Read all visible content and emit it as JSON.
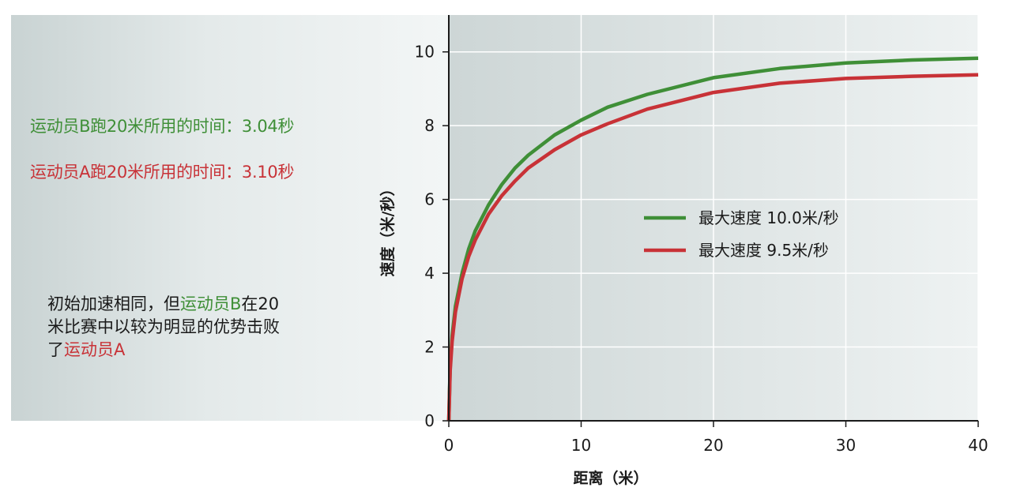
{
  "notes": {
    "athlete_b_time": "运动员B跑20米所用的时间：3.04秒",
    "athlete_a_time": "运动员A跑20米所用的时间：3.10秒"
  },
  "caption": {
    "line1_start": "初始加速相同，但",
    "line1_athlete_b": "运动员B",
    "line1_end": "在20",
    "line2": "米比赛中以较为明显的优势击败",
    "line3_start": "了",
    "line3_athlete_a": "运动员A"
  },
  "colors": {
    "green": "#3f8f37",
    "red": "#c83237",
    "plot_bg_left": "#cdd6d6",
    "plot_bg_right": "#eef2f2",
    "grid": "#ffffff"
  },
  "chart_data": {
    "type": "line",
    "xlabel": "距离（米）",
    "ylabel": "速度（米/秒）",
    "xlim": [
      0,
      40
    ],
    "ylim": [
      0,
      11
    ],
    "x_ticks": [
      "0",
      "10",
      "20",
      "30",
      "40"
    ],
    "y_ticks": [
      "0",
      "2",
      "4",
      "6",
      "8",
      "10"
    ],
    "grid": true,
    "legend_position": "center-right",
    "series": [
      {
        "name": "最大速度 10.0米/秒",
        "color": "#3f8f37",
        "x": [
          0,
          0.1,
          0.25,
          0.5,
          1,
          1.5,
          2,
          3,
          4,
          5,
          6,
          8,
          10,
          12,
          15,
          20,
          25,
          30,
          35,
          40
        ],
        "y": [
          0,
          1.45,
          2.3,
          3.1,
          4.0,
          4.65,
          5.15,
          5.85,
          6.4,
          6.85,
          7.2,
          7.75,
          8.15,
          8.5,
          8.85,
          9.3,
          9.55,
          9.7,
          9.78,
          9.83
        ]
      },
      {
        "name": "最大速度 9.5米/秒",
        "color": "#c83237",
        "x": [
          0,
          0.1,
          0.25,
          0.5,
          1,
          1.5,
          2,
          3,
          4,
          5,
          6,
          8,
          10,
          12,
          15,
          20,
          25,
          30,
          35,
          40
        ],
        "y": [
          0,
          1.35,
          2.15,
          2.95,
          3.85,
          4.45,
          4.9,
          5.6,
          6.1,
          6.5,
          6.85,
          7.35,
          7.75,
          8.05,
          8.45,
          8.9,
          9.15,
          9.28,
          9.34,
          9.38
        ]
      }
    ]
  }
}
